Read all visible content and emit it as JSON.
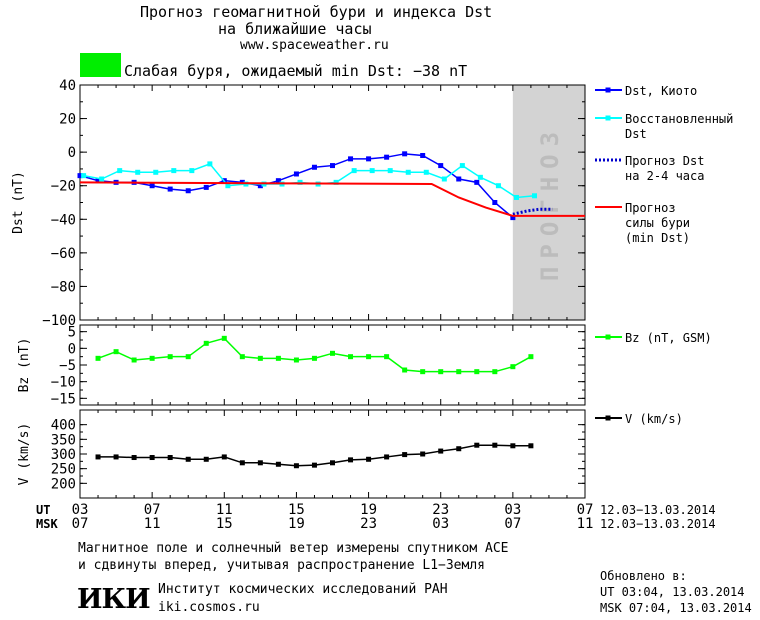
{
  "header": {
    "title_line1": "Прогноз геомагнитной бури и индекса Dst",
    "title_line2": "на ближайшие часы",
    "website": "www.spaceweather.ru",
    "status_color": "#00ee00",
    "status_text": "Слабая буря, ожидаемый min Dst: −38 nT"
  },
  "forecast_zone_label": "ПРОГНОЗ",
  "chart_data": [
    {
      "type": "line",
      "ylabel": "Dst (nT)",
      "ylim": [
        -100,
        40
      ],
      "yticks": [
        40,
        20,
        0,
        -20,
        -40,
        -60,
        -80,
        -100
      ],
      "x_unit": "hours since 03 UT 12.03.2014",
      "xlim": [
        0,
        28
      ],
      "forecast_region": [
        24,
        28
      ],
      "series": [
        {
          "name": "Dst, Киото",
          "color": "#0000ff",
          "marker": "square",
          "style": "solid",
          "x": [
            0,
            1,
            2,
            3,
            4,
            5,
            6,
            7,
            8,
            9,
            10,
            11,
            12,
            13,
            14,
            15,
            16,
            17,
            18,
            19,
            20,
            21,
            22,
            23,
            24
          ],
          "y": [
            -14,
            -17,
            -18,
            -18,
            -20,
            -22,
            -23,
            -21,
            -17,
            -18,
            -20,
            -17,
            -13,
            -9,
            -8,
            -4,
            -4,
            -3,
            -1,
            -2,
            -8,
            -16,
            -18,
            -30,
            -39
          ]
        },
        {
          "name": "Восстановленный Dst",
          "color": "#00ffff",
          "marker": "square",
          "style": "solid",
          "x": [
            0.2,
            1.2,
            2.2,
            3.2,
            4.2,
            5.2,
            6.2,
            7.2,
            8.2,
            9.2,
            10.2,
            11.2,
            12.2,
            13.2,
            14.2,
            15.2,
            16.2,
            17.2,
            18.2,
            19.2,
            20.2,
            21.2,
            22.2,
            23.2,
            24.2,
            25.2
          ],
          "y": [
            -14,
            -16,
            -11,
            -12,
            -12,
            -11,
            -11,
            -7,
            -20,
            -19,
            -19,
            -19,
            -18,
            -19,
            -18,
            -11,
            -11,
            -11,
            -12,
            -12,
            -16,
            -8,
            -15,
            -20,
            -27,
            -26
          ]
        },
        {
          "name": "Прогноз Dst на 2-4 часа",
          "color": "#0000cc",
          "marker": "none",
          "style": "dotted",
          "x": [
            24,
            24.8,
            25.5,
            26.2
          ],
          "y": [
            -37,
            -35,
            -34,
            -34
          ]
        },
        {
          "name": "Прогноз силы бури (min Dst)",
          "color": "#ff0000",
          "marker": "none",
          "style": "solid",
          "x": [
            0,
            19.5,
            21,
            22.5,
            24,
            28
          ],
          "y": [
            -18,
            -19,
            -27,
            -33,
            -38,
            -38
          ]
        }
      ]
    },
    {
      "type": "line",
      "ylabel": "Bz (nT)",
      "ylim": [
        -17,
        7
      ],
      "yticks": [
        5,
        0,
        -5,
        -10,
        -15
      ],
      "xlim": [
        0,
        28
      ],
      "series": [
        {
          "name": "Bz (nT, GSM)",
          "color": "#00ff00",
          "marker": "square",
          "style": "solid",
          "x": [
            1,
            2,
            3,
            4,
            5,
            6,
            7,
            8,
            9,
            10,
            11,
            12,
            13,
            14,
            15,
            16,
            17,
            18,
            19,
            20,
            21,
            22,
            23,
            24,
            25
          ],
          "y": [
            -3,
            -1,
            -3.5,
            -3,
            -2.5,
            -2.5,
            1.5,
            3,
            -2.5,
            -3,
            -3,
            -3.5,
            -3,
            -1.5,
            -2.5,
            -2.5,
            -2.5,
            -6.5,
            -7,
            -7,
            -7,
            -7,
            -7,
            -5.5,
            -2.5
          ]
        }
      ]
    },
    {
      "type": "line",
      "ylabel": "V (km/s)",
      "ylim": [
        150,
        450
      ],
      "yticks": [
        400,
        350,
        300,
        250,
        200
      ],
      "xlim": [
        0,
        28
      ],
      "series": [
        {
          "name": "V (km/s)",
          "color": "#000000",
          "marker": "square",
          "style": "solid",
          "x": [
            1,
            2,
            3,
            4,
            5,
            6,
            7,
            8,
            9,
            10,
            11,
            12,
            13,
            14,
            15,
            16,
            17,
            18,
            19,
            20,
            21,
            22,
            23,
            24,
            25
          ],
          "y": [
            290,
            290,
            288,
            288,
            288,
            282,
            282,
            290,
            270,
            270,
            265,
            260,
            262,
            270,
            280,
            282,
            290,
            298,
            300,
            310,
            318,
            330,
            330,
            328,
            328
          ]
        }
      ]
    }
  ],
  "x_axis": {
    "ut_label": "UT",
    "msk_label": "MSK",
    "ut_ticks": [
      "03",
      "07",
      "11",
      "15",
      "19",
      "23",
      "03",
      "07"
    ],
    "msk_ticks": [
      "07",
      "11",
      "15",
      "19",
      "23",
      "03",
      "07",
      "11"
    ],
    "date_range": "12.03−13.03.2014"
  },
  "footer": {
    "note_line1": "Магнитное поле и солнечный ветер измерены спутником ACE",
    "note_line2": "и сдвинуты вперед, учитывая распространение L1−Земля",
    "logo_text": "ИКИ",
    "institute": "Институт космических исследований РАН",
    "institute_site": "iki.cosmos.ru",
    "updated_label": "Обновлено в:",
    "updated_ut": "UT  03:04, 13.03.2014",
    "updated_msk": "MSK 07:04, 13.03.2014"
  }
}
